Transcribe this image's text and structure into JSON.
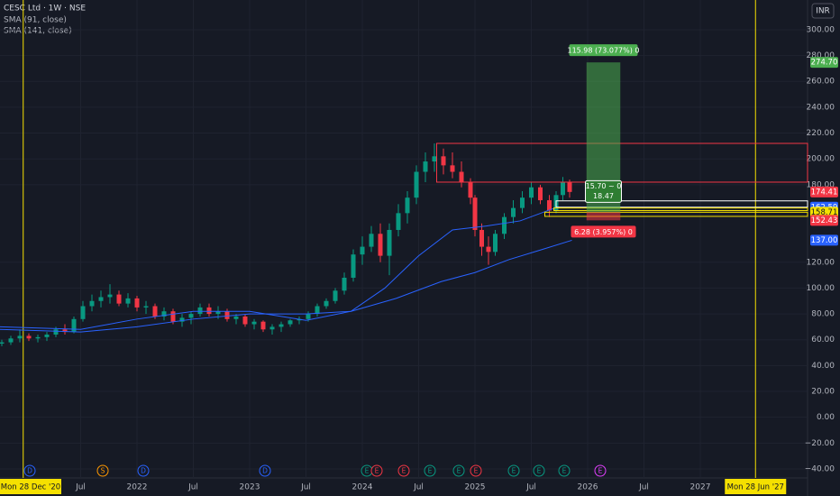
{
  "chart_data": {
    "type": "candlestick",
    "title": "CESC Ltd · 1W · NSE",
    "indicators": [
      {
        "name": "SMA (91, close)",
        "color": "#2962ff",
        "x": [
          2020.78,
          2021.5,
          2022.0,
          2022.5,
          2023.0,
          2023.5,
          2023.9,
          2024.2,
          2024.5,
          2024.8,
          2025.1,
          2025.4,
          2025.74
        ],
        "values": [
          70,
          68,
          76,
          82,
          82,
          75,
          82,
          100,
          125,
          145,
          148,
          152,
          163
        ]
      },
      {
        "name": "SMA (141, close)",
        "color": "#2962ff",
        "x": [
          2020.78,
          2021.5,
          2022.0,
          2022.5,
          2023.0,
          2023.5,
          2023.9,
          2024.3,
          2024.7,
          2025.0,
          2025.3,
          2025.6,
          2025.86
        ],
        "values": [
          68,
          66,
          70,
          76,
          80,
          80,
          82,
          92,
          105,
          112,
          122,
          130,
          137
        ]
      }
    ],
    "currency": "INR",
    "x": [
      2020.8,
      2020.88,
      2020.96,
      2021.04,
      2021.12,
      2021.2,
      2021.28,
      2021.36,
      2021.44,
      2021.52,
      2021.6,
      2021.68,
      2021.76,
      2021.84,
      2021.92,
      2022.0,
      2022.08,
      2022.16,
      2022.24,
      2022.32,
      2022.4,
      2022.48,
      2022.56,
      2022.64,
      2022.72,
      2022.8,
      2022.88,
      2022.96,
      2023.04,
      2023.12,
      2023.2,
      2023.28,
      2023.36,
      2023.44,
      2023.52,
      2023.6,
      2023.68,
      2023.76,
      2023.84,
      2023.92,
      2024.0,
      2024.08,
      2024.16,
      2024.24,
      2024.32,
      2024.4,
      2024.48,
      2024.56,
      2024.64,
      2024.72,
      2024.8,
      2024.88,
      2024.96,
      2025.0,
      2025.06,
      2025.12,
      2025.18,
      2025.26,
      2025.34,
      2025.42,
      2025.5,
      2025.58,
      2025.66,
      2025.72,
      2025.78,
      2025.84
    ],
    "open": [
      57,
      58,
      61,
      63,
      61,
      62,
      64,
      68,
      66,
      76,
      86,
      90,
      93,
      95,
      88,
      92,
      85,
      86,
      78,
      82,
      74,
      77,
      80,
      85,
      80,
      82,
      76,
      78,
      72,
      74,
      68,
      70,
      72,
      75,
      76,
      80,
      86,
      90,
      98,
      108,
      126,
      132,
      142,
      125,
      145,
      158,
      170,
      190,
      198,
      202,
      195,
      190,
      182,
      170,
      145,
      132,
      128,
      142,
      155,
      162,
      170,
      178,
      168,
      160,
      172,
      182
    ],
    "high": [
      60,
      63,
      68,
      65,
      64,
      66,
      70,
      72,
      78,
      90,
      95,
      98,
      103,
      98,
      96,
      94,
      90,
      88,
      85,
      84,
      80,
      82,
      88,
      88,
      86,
      84,
      80,
      80,
      76,
      75,
      72,
      74,
      76,
      78,
      82,
      88,
      92,
      100,
      112,
      130,
      140,
      148,
      150,
      150,
      165,
      175,
      195,
      205,
      212,
      208,
      205,
      198,
      185,
      172,
      150,
      140,
      145,
      158,
      168,
      175,
      182,
      180,
      172,
      175,
      186,
      184
    ],
    "low": [
      55,
      56,
      58,
      59,
      58,
      59,
      62,
      64,
      65,
      74,
      82,
      85,
      88,
      86,
      85,
      82,
      80,
      76,
      75,
      72,
      70,
      72,
      78,
      78,
      76,
      74,
      72,
      70,
      68,
      66,
      64,
      66,
      70,
      72,
      74,
      78,
      84,
      88,
      95,
      105,
      118,
      128,
      120,
      110,
      140,
      150,
      165,
      182,
      190,
      188,
      185,
      178,
      165,
      140,
      125,
      118,
      125,
      138,
      150,
      158,
      165,
      165,
      155,
      158,
      168,
      170
    ],
    "close": [
      58,
      61,
      63,
      61,
      62,
      64,
      68,
      66,
      76,
      86,
      90,
      93,
      95,
      88,
      92,
      85,
      86,
      78,
      82,
      74,
      77,
      80,
      85,
      80,
      82,
      76,
      78,
      72,
      74,
      68,
      70,
      72,
      75,
      76,
      80,
      86,
      90,
      98,
      108,
      126,
      132,
      142,
      125,
      145,
      158,
      170,
      190,
      198,
      202,
      195,
      190,
      182,
      170,
      145,
      132,
      128,
      142,
      155,
      162,
      170,
      178,
      168,
      160,
      172,
      182,
      174.41
    ],
    "up_color": "#089981",
    "down_color": "#f23645",
    "ylim": [
      -47,
      323
    ],
    "yticks": [
      {
        "value": 300,
        "label": "300.00"
      },
      {
        "value": 280,
        "label": "280.00"
      },
      {
        "value": 260,
        "label": "260.00"
      },
      {
        "value": 240,
        "label": "240.00"
      },
      {
        "value": 220,
        "label": "220.00"
      },
      {
        "value": 200,
        "label": "200.00"
      },
      {
        "value": 180,
        "label": "180.00"
      },
      {
        "value": 120,
        "label": "120.00"
      },
      {
        "value": 100,
        "label": "100.00"
      },
      {
        "value": 80,
        "label": "80.00"
      },
      {
        "value": 60,
        "label": "60.00"
      },
      {
        "value": 40,
        "label": "40.00"
      },
      {
        "value": 20,
        "label": "20.00"
      },
      {
        "value": 0,
        "label": "0.00"
      },
      {
        "value": -20,
        "label": "−20.00"
      },
      {
        "value": -40,
        "label": "−40.00"
      }
    ],
    "xlim": [
      2020.784,
      2027.952
    ],
    "xticks": [
      {
        "value": 2021.5,
        "label": "Jul"
      },
      2022,
      {
        "value": 2022.5,
        "label": "Jul"
      },
      2023,
      {
        "value": 2023.5,
        "label": "Jul"
      },
      2024,
      {
        "value": 2024.5,
        "label": "Jul"
      },
      2025,
      {
        "value": 2025.5,
        "label": "Jul"
      },
      2026,
      {
        "value": 2026.5,
        "label": "Jul"
      },
      2027
    ],
    "date_markers": [
      {
        "value": 2020.99,
        "label": "Mon 28 Dec '20"
      },
      {
        "value": 2027.49,
        "label": "Mon 28 Jun '27"
      }
    ],
    "grid": true,
    "zones": [
      {
        "top": 212,
        "bottom": 182,
        "from": 2024.66,
        "color": "#f23645"
      },
      {
        "top": 167.5,
        "bottom": 162.59,
        "from": 2025.72,
        "color": "#ffffff"
      },
      {
        "top": 162,
        "bottom": 160,
        "from": 2025.7,
        "color": "#f5e000"
      },
      {
        "top": 158.71,
        "bottom": 155.5,
        "from": 2025.62,
        "color": "#f5e000"
      }
    ],
    "position": {
      "from": 2025.99,
      "to": 2026.29,
      "entry": 158.71,
      "target": 274.7,
      "stop": 152.43,
      "target_label": "115.98 (73.077%) 0",
      "stop_label": "6.28 (3.957%) 0",
      "mid_labels": [
        "15.70 ~ 0",
        "18.47"
      ]
    },
    "price_labels": [
      {
        "value": 274.7,
        "label": "274.70",
        "color": "#4caf50"
      },
      {
        "value": 174.41,
        "label": "174.41",
        "color": "#f23645"
      },
      {
        "value": 162.59,
        "label": "162.59",
        "color": "#2962ff"
      },
      {
        "value": 158.71,
        "label": "158.71",
        "color": "#f5e000"
      },
      {
        "value": 152.43,
        "label": "152.43",
        "color": "#f23645"
      },
      {
        "value": 137,
        "label": "137.00",
        "color": "#2962ff"
      }
    ],
    "events": [
      {
        "x": 2021.048,
        "label": "D",
        "color": "#2962ff"
      },
      {
        "x": 2021.696,
        "label": "S",
        "color": "#ff9800"
      },
      {
        "x": 2022.056,
        "label": "D",
        "color": "#2962ff"
      },
      {
        "x": 2023.136,
        "label": "D",
        "color": "#2962ff"
      },
      {
        "x": 2024.04,
        "label": "E",
        "color": "#089981"
      },
      {
        "x": 2024.128,
        "label": "E",
        "color": "#f23645"
      },
      {
        "x": 2024.368,
        "label": "E",
        "color": "#f23645"
      },
      {
        "x": 2024.6,
        "label": "E",
        "color": "#089981"
      },
      {
        "x": 2024.856,
        "label": "E",
        "color": "#089981"
      },
      {
        "x": 2025.008,
        "label": "E",
        "color": "#f23645"
      },
      {
        "x": 2025.344,
        "label": "E",
        "color": "#089981"
      },
      {
        "x": 2025.568,
        "label": "E",
        "color": "#089981"
      },
      {
        "x": 2025.792,
        "label": "E",
        "color": "#089981"
      },
      {
        "x": 2026.112,
        "label": "E",
        "color": "#e040fb"
      }
    ]
  }
}
